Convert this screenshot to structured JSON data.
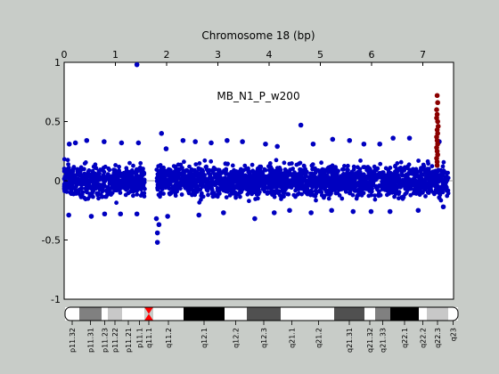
{
  "chart_data": {
    "type": "scatter",
    "xlabel": "Chromosome 18 (bp)",
    "annotation": "MB_N1_P_w200",
    "xlim": [
      0,
      7.6
    ],
    "ylim": [
      -1,
      1
    ],
    "x_ticks": [
      "0",
      "1",
      "2",
      "3",
      "4",
      "5",
      "6",
      "7"
    ],
    "y_ticks": [
      "1",
      "0.5",
      "0",
      "-0.5",
      "-1"
    ],
    "grid": false,
    "series": [
      {
        "color": "#0000c0",
        "points": [
          [
            1.42,
            0.98
          ],
          [
            4.62,
            0.47
          ],
          [
            1.82,
            -0.52
          ],
          [
            1.82,
            -0.44
          ],
          [
            1.85,
            -0.37
          ],
          [
            1.9,
            0.4
          ],
          [
            1.99,
            0.27
          ],
          [
            0.1,
            0.31
          ],
          [
            0.22,
            0.32
          ],
          [
            0.44,
            0.34
          ],
          [
            0.78,
            0.33
          ],
          [
            1.12,
            0.32
          ],
          [
            1.45,
            0.32
          ],
          [
            2.32,
            0.34
          ],
          [
            2.56,
            0.33
          ],
          [
            2.87,
            0.32
          ],
          [
            3.18,
            0.34
          ],
          [
            3.48,
            0.33
          ],
          [
            3.93,
            0.31
          ],
          [
            4.16,
            0.29
          ],
          [
            4.86,
            0.31
          ],
          [
            5.24,
            0.35
          ],
          [
            5.57,
            0.34
          ],
          [
            5.85,
            0.31
          ],
          [
            6.16,
            0.31
          ],
          [
            6.42,
            0.36
          ],
          [
            6.74,
            0.36
          ],
          [
            7.32,
            0.33
          ],
          [
            0.09,
            -0.29
          ],
          [
            0.53,
            -0.3
          ],
          [
            0.79,
            -0.28
          ],
          [
            1.1,
            -0.28
          ],
          [
            1.42,
            -0.28
          ],
          [
            1.8,
            -0.32
          ],
          [
            2.02,
            -0.3
          ],
          [
            2.63,
            -0.29
          ],
          [
            3.11,
            -0.27
          ],
          [
            3.72,
            -0.32
          ],
          [
            4.1,
            -0.27
          ],
          [
            4.4,
            -0.25
          ],
          [
            4.82,
            -0.27
          ],
          [
            5.22,
            -0.25
          ],
          [
            5.64,
            -0.26
          ],
          [
            5.99,
            -0.26
          ],
          [
            6.36,
            -0.26
          ],
          [
            6.91,
            -0.25
          ],
          [
            7.4,
            -0.22
          ]
        ]
      },
      {
        "color": "#8b0000",
        "points": [
          [
            7.28,
            0.72
          ],
          [
            7.29,
            0.66
          ],
          [
            7.27,
            0.6
          ],
          [
            7.28,
            0.56
          ],
          [
            7.27,
            0.53
          ],
          [
            7.29,
            0.5
          ],
          [
            7.3,
            0.46
          ],
          [
            7.28,
            0.43
          ],
          [
            7.29,
            0.4
          ],
          [
            7.27,
            0.37
          ],
          [
            7.28,
            0.34
          ],
          [
            7.29,
            0.31
          ],
          [
            7.27,
            0.28
          ],
          [
            7.28,
            0.25
          ],
          [
            7.29,
            0.22
          ],
          [
            7.27,
            0.19
          ],
          [
            7.28,
            0.16
          ],
          [
            7.28,
            0.13
          ]
        ]
      }
    ],
    "ideogram": {
      "bands": [
        {
          "label": "p11.32",
          "stain": "white"
        },
        {
          "label": "p11.31",
          "stain": "gpos50"
        },
        {
          "label": "p11.23",
          "stain": "white"
        },
        {
          "label": "p11.22",
          "stain": "gpos25"
        },
        {
          "label": "p11.21",
          "stain": "white"
        },
        {
          "label": "p11.1",
          "stain": "white"
        },
        {
          "label": "q11.1",
          "stain": "centromere"
        },
        {
          "label": "q11.2",
          "stain": "white"
        },
        {
          "label": "q12.1",
          "stain": "gpos100"
        },
        {
          "label": "q12.2",
          "stain": "white"
        },
        {
          "label": "q12.3",
          "stain": "gpos75"
        },
        {
          "label": "q21.1",
          "stain": "white"
        },
        {
          "label": "q21.2",
          "stain": "white"
        },
        {
          "label": "q21.31",
          "stain": "gpos75"
        },
        {
          "label": "q21.32",
          "stain": "white"
        },
        {
          "label": "q21.33",
          "stain": "gpos50"
        },
        {
          "label": "q22.1",
          "stain": "gpos100"
        },
        {
          "label": "q22.2",
          "stain": "white"
        },
        {
          "label": "q22.3",
          "stain": "gpos25"
        },
        {
          "label": "q23",
          "stain": "white"
        }
      ],
      "stain_colors": {
        "white": "#ffffff",
        "gpos25": "#c8c8c8",
        "gpos50": "#808080",
        "gpos75": "#505050",
        "gpos100": "#000000",
        "centromere": "#ff0000"
      }
    }
  }
}
